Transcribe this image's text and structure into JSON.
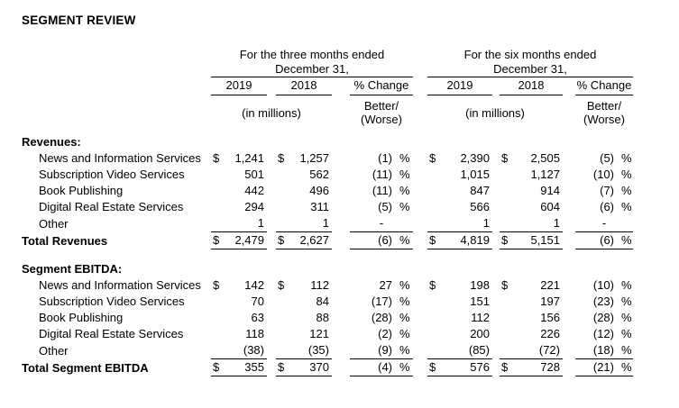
{
  "title": "SEGMENT REVIEW",
  "colors": {
    "text": "#000000",
    "background": "#ffffff",
    "rule": "#000000"
  },
  "table": {
    "groups": [
      {
        "period_line1": "For the three months ended",
        "period_line2": "December 31,",
        "years": [
          "2019",
          "2018"
        ],
        "change_label": "% Change",
        "units_label": "(in millions)",
        "change_sub1": "Better/",
        "change_sub2": "(Worse)"
      },
      {
        "period_line1": "For the six months ended",
        "period_line2": "December 31,",
        "years": [
          "2019",
          "2018"
        ],
        "change_label": "% Change",
        "units_label": "(in millions)",
        "change_sub1": "Better/",
        "change_sub2": "(Worse)"
      }
    ],
    "rows": [
      {
        "type": "section",
        "label": "Revenues:"
      },
      {
        "type": "item",
        "label": "News and Information Services",
        "tm": [
          "$",
          "1,241",
          "$",
          "1,257",
          "(1)",
          "%"
        ],
        "sm": [
          "$",
          "2,390",
          "$",
          "2,505",
          "(5)",
          "%"
        ]
      },
      {
        "type": "item",
        "label": "Subscription Video Services",
        "tm": [
          "",
          "501",
          "",
          "562",
          "(11)",
          "%"
        ],
        "sm": [
          "",
          "1,015",
          "",
          "1,127",
          "(10)",
          "%"
        ]
      },
      {
        "type": "item",
        "label": "Book Publishing",
        "tm": [
          "",
          "442",
          "",
          "496",
          "(11)",
          "%"
        ],
        "sm": [
          "",
          "847",
          "",
          "914",
          "(7)",
          "%"
        ]
      },
      {
        "type": "item",
        "label": "Digital Real Estate Services",
        "tm": [
          "",
          "294",
          "",
          "311",
          "(5)",
          "%"
        ],
        "sm": [
          "",
          "566",
          "",
          "604",
          "(6)",
          "%"
        ]
      },
      {
        "type": "item-rule",
        "label": "Other",
        "tm": [
          "",
          "1",
          "",
          "1",
          "-",
          ""
        ],
        "sm": [
          "",
          "1",
          "",
          "1",
          "-",
          ""
        ]
      },
      {
        "type": "total",
        "label": "Total Revenues",
        "tm": [
          "$",
          "2,479",
          "$",
          "2,627",
          "(6)",
          "%"
        ],
        "sm": [
          "$",
          "4,819",
          "$",
          "5,151",
          "(6)",
          "%"
        ]
      },
      {
        "type": "spacer"
      },
      {
        "type": "section",
        "label": "Segment EBITDA:"
      },
      {
        "type": "item",
        "label": "News and Information Services",
        "tm": [
          "$",
          "142",
          "$",
          "112",
          "27",
          "%"
        ],
        "sm": [
          "$",
          "198",
          "$",
          "221",
          "(10)",
          "%"
        ]
      },
      {
        "type": "item",
        "label": "Subscription Video Services",
        "tm": [
          "",
          "70",
          "",
          "84",
          "(17)",
          "%"
        ],
        "sm": [
          "",
          "151",
          "",
          "197",
          "(23)",
          "%"
        ]
      },
      {
        "type": "item",
        "label": "Book Publishing",
        "tm": [
          "",
          "63",
          "",
          "88",
          "(28)",
          "%"
        ],
        "sm": [
          "",
          "112",
          "",
          "156",
          "(28)",
          "%"
        ]
      },
      {
        "type": "item",
        "label": "Digital Real Estate Services",
        "tm": [
          "",
          "118",
          "",
          "121",
          "(2)",
          "%"
        ],
        "sm": [
          "",
          "200",
          "",
          "226",
          "(12)",
          "%"
        ]
      },
      {
        "type": "item-rule",
        "label": "Other",
        "tm": [
          "",
          "(38)",
          "",
          "(35)",
          "(9)",
          "%"
        ],
        "sm": [
          "",
          "(85)",
          "",
          "(72)",
          "(18)",
          "%"
        ]
      },
      {
        "type": "total",
        "label": "Total Segment EBITDA",
        "tm": [
          "$",
          "355",
          "$",
          "370",
          "(4)",
          "%"
        ],
        "sm": [
          "$",
          "576",
          "$",
          "728",
          "(21)",
          "%"
        ]
      }
    ]
  }
}
